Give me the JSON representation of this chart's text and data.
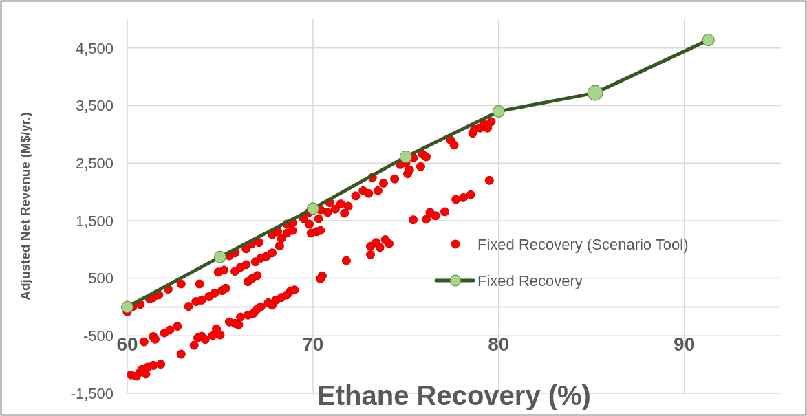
{
  "chart_data": {
    "type": "scatter",
    "xlabel": "Ethane Recovery (%)",
    "ylabel": "Adjusted Net Revenue (M$/yr.)",
    "xlim": [
      60,
      95.2
    ],
    "xticks": [
      60,
      70,
      80,
      90
    ],
    "ylim": [
      -1500,
      5000
    ],
    "yticks": [
      {
        "value": -1500,
        "label": "-1,500"
      },
      {
        "value": -500,
        "label": "-500"
      },
      {
        "value": 0,
        "label": null
      },
      {
        "value": 500,
        "label": "500"
      },
      {
        "value": 1500,
        "label": "1,500"
      },
      {
        "value": 2500,
        "label": "2,500"
      },
      {
        "value": 3500,
        "label": "3,500"
      },
      {
        "value": 4500,
        "label": "4,500"
      }
    ],
    "grid": true,
    "legend": "right",
    "marker": "circle",
    "series": [
      {
        "name": "Fixed Recovery (Scenario Tool)",
        "color": "#ff0000",
        "x": [
          60.0,
          60.3,
          60.7,
          61.2,
          61.4,
          61.7,
          62.2,
          62.9,
          63.9,
          63.3,
          63.7,
          64.0,
          64.4,
          64.7,
          65.1,
          65.3,
          64.9,
          65.2,
          65.5,
          65.8,
          65.8,
          66.1,
          66.4,
          66.4,
          66.7,
          67.1,
          66.5,
          66.7,
          67.0,
          66.9,
          67.2,
          67.5,
          67.8,
          68.2,
          68.3,
          68.6,
          68.9,
          67.8,
          68.1,
          68.6,
          68.9,
          69.5,
          69.8,
          69.9,
          70.2,
          70.4,
          70.3,
          69.8,
          70.4,
          70.8,
          70.9,
          71.2,
          71.5,
          71.7,
          71.9,
          72.3,
          72.7,
          73.0,
          73.2,
          73.5,
          73.8,
          74.4,
          74.7,
          75.0,
          75.4,
          75.9,
          76.1,
          75.1,
          75.2,
          75.8,
          77.4,
          77.6,
          78.6,
          78.7,
          79.0,
          79.4,
          79.6,
          79.2,
          79.5,
          78.5,
          78.1,
          77.7,
          77.1,
          76.6,
          76.3,
          76.1,
          75.4,
          74.1,
          73.9,
          73.6,
          73.4,
          73.1,
          73.1,
          71.8,
          70.5,
          70.4,
          60.9,
          61.4,
          61.5,
          62.0,
          62.3,
          62.7,
          63.6,
          63.8,
          64.0,
          64.2,
          64.6,
          64.8,
          65.0,
          65.5,
          65.8,
          66.0,
          66.1,
          66.5,
          66.8,
          67.0,
          67.2,
          67.6,
          67.8,
          68.0,
          68.3,
          68.6,
          68.8,
          69.0,
          60.2,
          60.5,
          60.7,
          60.8,
          61.0,
          61.1,
          61.4,
          61.8,
          62.9
        ],
        "values": [
          -85,
          10,
          45,
          140,
          165,
          210,
          310,
          400,
          400,
          10,
          95,
          120,
          180,
          240,
          285,
          325,
          605,
          640,
          890,
          940,
          620,
          690,
          735,
          1010,
          1100,
          1120,
          440,
          490,
          545,
          785,
          850,
          880,
          940,
          1060,
          1190,
          1285,
          1330,
          1260,
          1310,
          1440,
          1465,
          1535,
          1440,
          1285,
          1310,
          1330,
          1535,
          1645,
          1690,
          1645,
          1815,
          1700,
          1790,
          1630,
          1750,
          1930,
          2020,
          1975,
          2250,
          2020,
          2150,
          2225,
          2475,
          2500,
          2590,
          2655,
          2610,
          2315,
          2380,
          2440,
          2905,
          2815,
          3020,
          3090,
          3110,
          3110,
          3220,
          3180,
          2200,
          1950,
          1900,
          1870,
          1655,
          1585,
          1645,
          1525,
          1515,
          1100,
          1170,
          1035,
          1120,
          910,
          1055,
          805,
          540,
          490,
          -605,
          -515,
          -560,
          -450,
          -400,
          -335,
          -665,
          -535,
          -510,
          -565,
          -495,
          -380,
          -485,
          -260,
          -285,
          -310,
          -175,
          -140,
          -110,
          -35,
          5,
          75,
          30,
          120,
          165,
          210,
          280,
          295,
          -1180,
          -1200,
          -1130,
          -1085,
          -1165,
          -1045,
          -1015,
          -995,
          -820
        ]
      },
      {
        "name": "Fixed Recovery",
        "type": "line",
        "color": "#375623",
        "x": [
          60,
          65,
          70,
          75,
          80,
          85.2,
          91.3
        ],
        "values": [
          0,
          870,
          1710,
          2610,
          3400,
          3720,
          4640
        ]
      }
    ]
  }
}
